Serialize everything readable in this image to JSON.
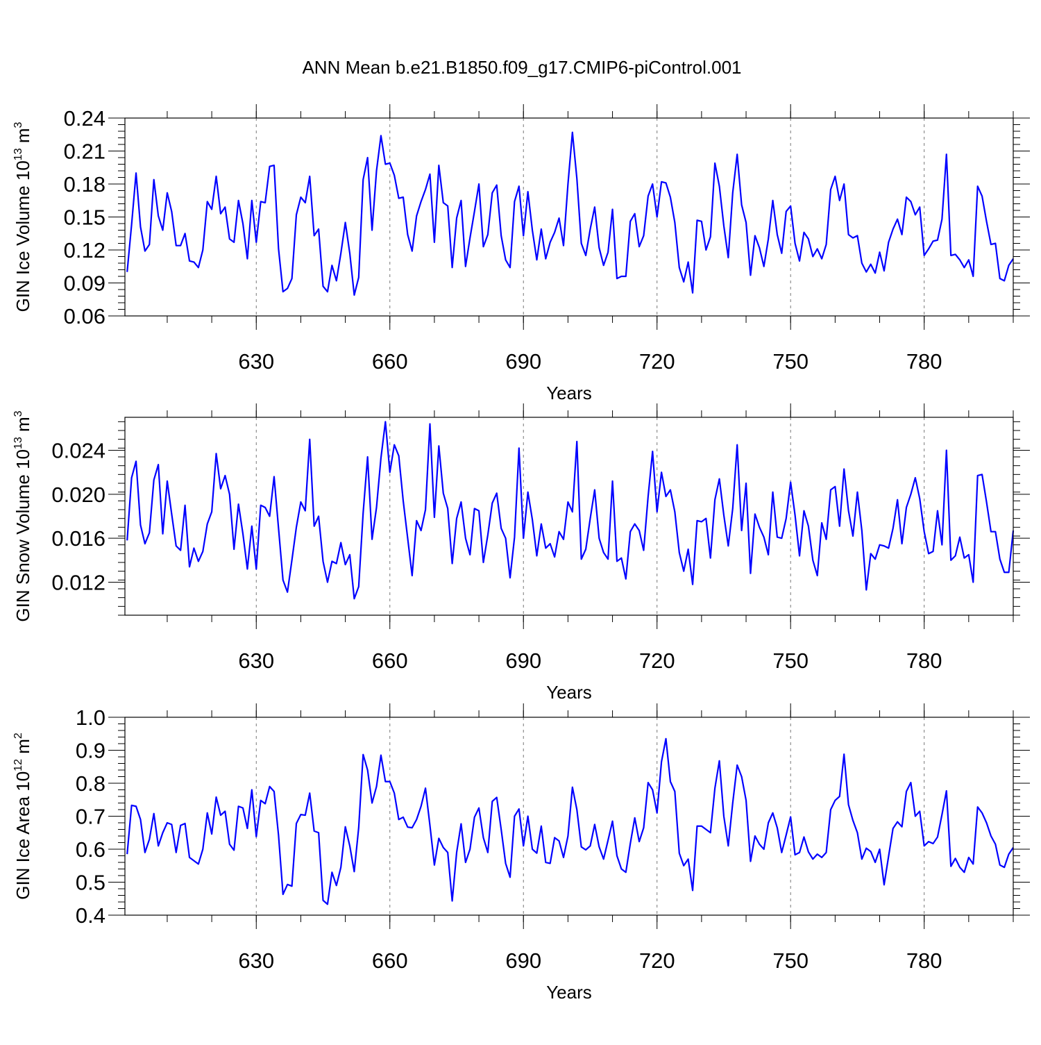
{
  "title": "ANN Mean b.e21.B1850.f09_g17.CMIP6-piControl.001",
  "colors": {
    "line": "#0000ff",
    "axis": "#000000"
  },
  "chart_data": [
    {
      "type": "line",
      "name": "ice-volume",
      "xlabel": "Years",
      "ylabel_main": "GIN Ice Volume 10",
      "ylabel_sup": "13",
      "ylabel_tail": " m",
      "ylabel_sup2": "3",
      "xlim": [
        600.5,
        800
      ],
      "ylim": [
        0.06,
        0.24
      ],
      "xticks": [
        630,
        660,
        690,
        720,
        750,
        780
      ],
      "xtick_labels": [
        "630",
        "660",
        "690",
        "720",
        "750",
        "780"
      ],
      "yticks": [
        0.06,
        0.09,
        0.12,
        0.15,
        0.18,
        0.21,
        0.24
      ],
      "ytick_labels": [
        "0.06",
        "0.09",
        "0.12",
        "0.15",
        "0.18",
        "0.21",
        "0.24"
      ],
      "grid_x": true,
      "x_start": 601,
      "values": [
        0.1,
        0.143,
        0.19,
        0.141,
        0.119,
        0.125,
        0.184,
        0.151,
        0.138,
        0.172,
        0.155,
        0.124,
        0.124,
        0.135,
        0.11,
        0.109,
        0.104,
        0.12,
        0.164,
        0.157,
        0.187,
        0.153,
        0.159,
        0.13,
        0.127,
        0.165,
        0.144,
        0.112,
        0.165,
        0.127,
        0.164,
        0.163,
        0.196,
        0.197,
        0.121,
        0.082,
        0.085,
        0.094,
        0.152,
        0.168,
        0.163,
        0.187,
        0.133,
        0.139,
        0.087,
        0.082,
        0.106,
        0.092,
        0.117,
        0.145,
        0.117,
        0.079,
        0.095,
        0.184,
        0.204,
        0.138,
        0.192,
        0.224,
        0.198,
        0.199,
        0.188,
        0.167,
        0.168,
        0.134,
        0.119,
        0.151,
        0.164,
        0.175,
        0.189,
        0.127,
        0.197,
        0.163,
        0.16,
        0.104,
        0.149,
        0.165,
        0.105,
        0.131,
        0.155,
        0.18,
        0.123,
        0.134,
        0.172,
        0.179,
        0.133,
        0.111,
        0.104,
        0.164,
        0.178,
        0.133,
        0.173,
        0.138,
        0.111,
        0.139,
        0.112,
        0.127,
        0.136,
        0.149,
        0.124,
        0.18,
        0.227,
        0.185,
        0.126,
        0.115,
        0.139,
        0.159,
        0.122,
        0.106,
        0.118,
        0.157,
        0.094,
        0.096,
        0.096,
        0.146,
        0.153,
        0.123,
        0.133,
        0.169,
        0.18,
        0.15,
        0.182,
        0.181,
        0.168,
        0.145,
        0.104,
        0.091,
        0.109,
        0.081,
        0.147,
        0.146,
        0.12,
        0.132,
        0.199,
        0.178,
        0.142,
        0.113,
        0.172,
        0.207,
        0.161,
        0.145,
        0.097,
        0.133,
        0.122,
        0.105,
        0.13,
        0.165,
        0.134,
        0.117,
        0.155,
        0.16,
        0.126,
        0.11,
        0.136,
        0.13,
        0.114,
        0.121,
        0.112,
        0.125,
        0.175,
        0.187,
        0.165,
        0.18,
        0.134,
        0.131,
        0.133,
        0.108,
        0.1,
        0.107,
        0.099,
        0.118,
        0.101,
        0.127,
        0.139,
        0.148,
        0.134,
        0.168,
        0.164,
        0.152,
        0.159,
        0.115,
        0.121,
        0.128,
        0.129,
        0.148,
        0.207,
        0.115,
        0.116,
        0.111,
        0.104,
        0.111,
        0.096,
        0.178,
        0.169,
        0.146,
        0.125,
        0.126,
        0.094,
        0.092,
        0.106,
        0.112
      ]
    },
    {
      "type": "line",
      "name": "snow-volume",
      "xlabel": "Years",
      "ylabel_main": "GIN Snow Volume 10",
      "ylabel_sup": "13",
      "ylabel_tail": " m",
      "ylabel_sup2": "3",
      "xlim": [
        600.5,
        800
      ],
      "ylim": [
        0.009,
        0.027
      ],
      "xticks": [
        630,
        660,
        690,
        720,
        750,
        780
      ],
      "xtick_labels": [
        "630",
        "660",
        "690",
        "720",
        "750",
        "780"
      ],
      "yticks": [
        0.012,
        0.016,
        0.02,
        0.024
      ],
      "ytick_labels": [
        "0.012",
        "0.016",
        "0.020",
        "0.024"
      ],
      "grid_x": true,
      "x_start": 601,
      "values": [
        0.0158,
        0.0215,
        0.023,
        0.0172,
        0.0155,
        0.0165,
        0.0213,
        0.0227,
        0.0164,
        0.0212,
        0.0182,
        0.0153,
        0.0149,
        0.019,
        0.0134,
        0.0151,
        0.0139,
        0.0148,
        0.0173,
        0.0184,
        0.0237,
        0.0205,
        0.0217,
        0.02,
        0.015,
        0.0191,
        0.0164,
        0.0132,
        0.0171,
        0.0132,
        0.019,
        0.0188,
        0.018,
        0.0216,
        0.0169,
        0.0122,
        0.0111,
        0.014,
        0.017,
        0.0193,
        0.0185,
        0.025,
        0.0171,
        0.018,
        0.0139,
        0.012,
        0.0139,
        0.0137,
        0.0156,
        0.0136,
        0.0145,
        0.0105,
        0.0116,
        0.0183,
        0.0234,
        0.0159,
        0.0188,
        0.0233,
        0.0266,
        0.022,
        0.0245,
        0.0235,
        0.0194,
        0.016,
        0.0126,
        0.0176,
        0.0167,
        0.0186,
        0.0264,
        0.0179,
        0.0244,
        0.0201,
        0.0187,
        0.0137,
        0.0178,
        0.0193,
        0.016,
        0.0145,
        0.0187,
        0.0185,
        0.0138,
        0.0163,
        0.0192,
        0.0201,
        0.0169,
        0.016,
        0.0124,
        0.0161,
        0.0242,
        0.016,
        0.0202,
        0.0177,
        0.0144,
        0.0173,
        0.0151,
        0.0155,
        0.0143,
        0.0166,
        0.0159,
        0.0193,
        0.0184,
        0.0248,
        0.0141,
        0.015,
        0.0178,
        0.0204,
        0.016,
        0.0147,
        0.0141,
        0.0212,
        0.0139,
        0.0142,
        0.0123,
        0.0166,
        0.0173,
        0.0167,
        0.0149,
        0.0198,
        0.0239,
        0.0184,
        0.022,
        0.0198,
        0.0204,
        0.0184,
        0.0147,
        0.013,
        0.015,
        0.0118,
        0.0176,
        0.0175,
        0.0178,
        0.0142,
        0.0195,
        0.0214,
        0.0181,
        0.0153,
        0.0187,
        0.0245,
        0.0167,
        0.021,
        0.0128,
        0.0182,
        0.017,
        0.0161,
        0.0145,
        0.0202,
        0.0161,
        0.016,
        0.0178,
        0.0211,
        0.0181,
        0.0144,
        0.0185,
        0.0171,
        0.014,
        0.0126,
        0.0174,
        0.0159,
        0.0204,
        0.0207,
        0.0171,
        0.0223,
        0.0185,
        0.0162,
        0.0202,
        0.0167,
        0.0113,
        0.0146,
        0.0141,
        0.0154,
        0.0153,
        0.0151,
        0.0169,
        0.0195,
        0.0155,
        0.0188,
        0.02,
        0.0215,
        0.0196,
        0.0166,
        0.0146,
        0.0148,
        0.0185,
        0.0154,
        0.024,
        0.014,
        0.0144,
        0.0161,
        0.0142,
        0.0145,
        0.012,
        0.0217,
        0.0218,
        0.0193,
        0.0166,
        0.0166,
        0.0141,
        0.0129,
        0.0129,
        0.0167
      ]
    },
    {
      "type": "line",
      "name": "ice-area",
      "xlabel": "Years",
      "ylabel_main": "GIN Ice Area 10",
      "ylabel_sup": "12",
      "ylabel_tail": " m",
      "ylabel_sup2": "2",
      "xlim": [
        600.5,
        800
      ],
      "ylim": [
        0.4,
        1.0
      ],
      "xticks": [
        630,
        660,
        690,
        720,
        750,
        780
      ],
      "xtick_labels": [
        "630",
        "660",
        "690",
        "720",
        "750",
        "780"
      ],
      "yticks": [
        0.4,
        0.5,
        0.6,
        0.7,
        0.8,
        0.9,
        1.0
      ],
      "ytick_labels": [
        "0.4",
        "0.5",
        "0.6",
        "0.7",
        "0.8",
        "0.9",
        "1.0"
      ],
      "grid_x": true,
      "x_start": 601,
      "values": [
        0.585,
        0.733,
        0.73,
        0.69,
        0.59,
        0.63,
        0.708,
        0.61,
        0.65,
        0.68,
        0.675,
        0.59,
        0.672,
        0.678,
        0.575,
        0.565,
        0.555,
        0.6,
        0.71,
        0.646,
        0.758,
        0.703,
        0.715,
        0.615,
        0.597,
        0.73,
        0.725,
        0.663,
        0.78,
        0.638,
        0.748,
        0.738,
        0.79,
        0.775,
        0.642,
        0.463,
        0.493,
        0.488,
        0.678,
        0.705,
        0.703,
        0.77,
        0.655,
        0.65,
        0.445,
        0.433,
        0.53,
        0.49,
        0.545,
        0.668,
        0.61,
        0.532,
        0.665,
        0.887,
        0.84,
        0.74,
        0.79,
        0.885,
        0.805,
        0.805,
        0.77,
        0.69,
        0.697,
        0.667,
        0.665,
        0.69,
        0.73,
        0.785,
        0.672,
        0.552,
        0.633,
        0.605,
        0.59,
        0.443,
        0.59,
        0.677,
        0.56,
        0.6,
        0.697,
        0.725,
        0.635,
        0.59,
        0.745,
        0.757,
        0.66,
        0.557,
        0.515,
        0.7,
        0.722,
        0.61,
        0.7,
        0.6,
        0.588,
        0.67,
        0.56,
        0.557,
        0.635,
        0.625,
        0.575,
        0.64,
        0.788,
        0.72,
        0.607,
        0.598,
        0.61,
        0.675,
        0.607,
        0.57,
        0.627,
        0.685,
        0.58,
        0.54,
        0.53,
        0.617,
        0.695,
        0.623,
        0.665,
        0.802,
        0.78,
        0.71,
        0.865,
        0.935,
        0.805,
        0.775,
        0.588,
        0.55,
        0.57,
        0.475,
        0.67,
        0.67,
        0.66,
        0.65,
        0.785,
        0.868,
        0.7,
        0.61,
        0.74,
        0.855,
        0.82,
        0.748,
        0.563,
        0.64,
        0.615,
        0.6,
        0.68,
        0.71,
        0.665,
        0.59,
        0.643,
        0.698,
        0.583,
        0.59,
        0.637,
        0.592,
        0.57,
        0.585,
        0.575,
        0.59,
        0.72,
        0.748,
        0.76,
        0.888,
        0.735,
        0.687,
        0.65,
        0.57,
        0.603,
        0.593,
        0.56,
        0.6,
        0.492,
        0.578,
        0.663,
        0.683,
        0.668,
        0.775,
        0.802,
        0.7,
        0.715,
        0.61,
        0.623,
        0.617,
        0.637,
        0.705,
        0.777,
        0.548,
        0.572,
        0.545,
        0.53,
        0.575,
        0.555,
        0.728,
        0.71,
        0.68,
        0.64,
        0.615,
        0.552,
        0.545,
        0.585,
        0.605
      ]
    }
  ]
}
